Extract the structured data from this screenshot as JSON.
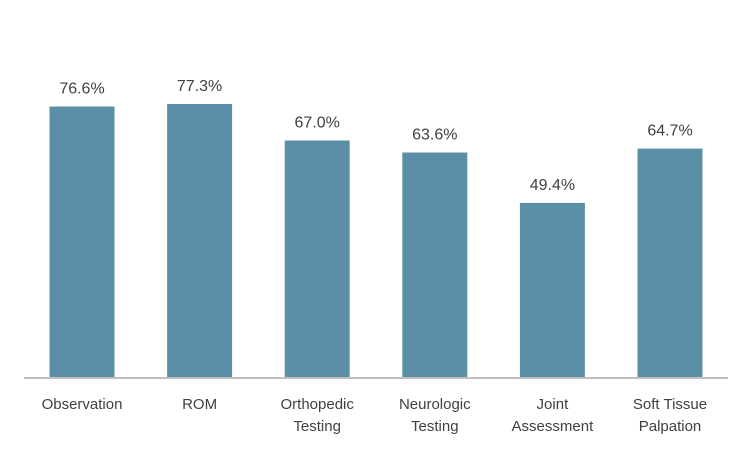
{
  "colors": {
    "bar": "#5b8fa8",
    "axis": "#bfbfbf",
    "text": "#404040",
    "background": "#ffffff"
  },
  "chart_data": {
    "type": "bar",
    "title": "",
    "xlabel": "",
    "ylabel": "",
    "ylim": [
      0,
      100
    ],
    "grid": false,
    "legend": "none",
    "value_suffix": "%",
    "categories": [
      [
        "Observation"
      ],
      [
        "ROM"
      ],
      [
        "Orthopedic",
        "Testing"
      ],
      [
        "Neurologic",
        "Testing"
      ],
      [
        "Joint",
        "Assessment"
      ],
      [
        "Soft Tissue",
        "Palpation"
      ]
    ],
    "values": [
      76.6,
      77.3,
      67.0,
      63.6,
      49.4,
      64.7
    ],
    "value_labels": [
      "76.6%",
      "77.3%",
      "67.0%",
      "63.6%",
      "49.4%",
      "64.7%"
    ]
  }
}
